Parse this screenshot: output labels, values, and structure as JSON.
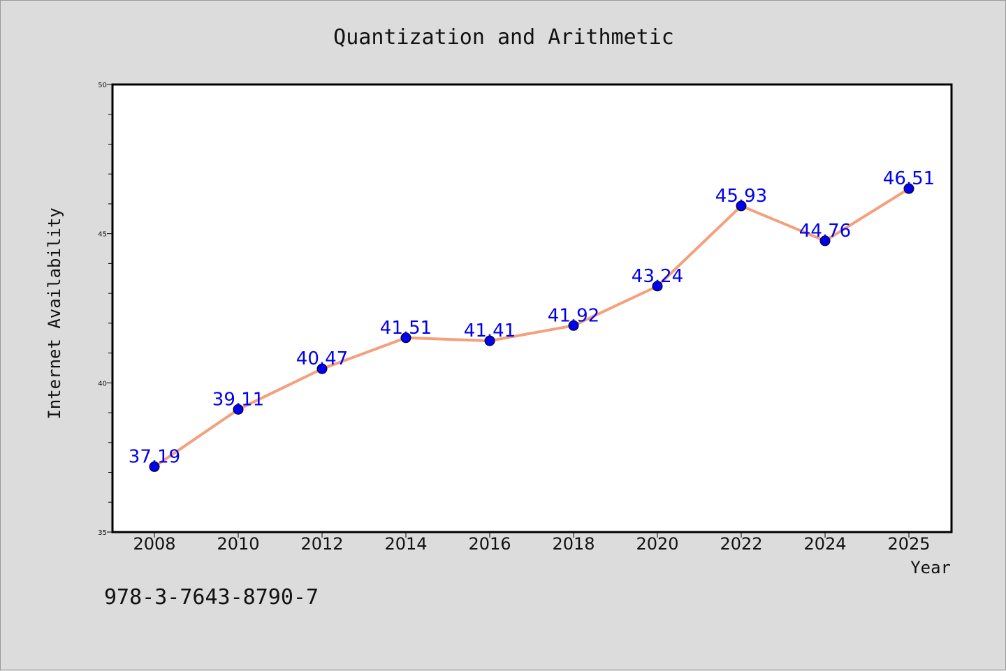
{
  "chart_data": {
    "type": "line",
    "title": "Quantization and Arithmetic",
    "xlabel": "Year",
    "ylabel": "Internet Availability",
    "x": [
      "2008",
      "2010",
      "2012",
      "2014",
      "2016",
      "2018",
      "2020",
      "2022",
      "2024",
      "2025"
    ],
    "series": [
      {
        "values": [
          37.19,
          39.11,
          40.47,
          41.51,
          41.41,
          41.92,
          43.24,
          45.93,
          44.76,
          46.51
        ],
        "line_color": "#f4a07e",
        "marker_color": "#0000ee"
      }
    ],
    "data_labels": [
      "37.19",
      "39.11",
      "40.47",
      "41.51",
      "41.41",
      "41.92",
      "43.24",
      "45.93",
      "44.76",
      "46.51"
    ],
    "ylim": [
      35,
      50
    ],
    "yticks": [
      "35",
      "40",
      "45",
      "50"
    ],
    "grid": false,
    "legend": "none"
  },
  "footer": {
    "isbn": "978-3-7643-8790-7"
  },
  "colors": {
    "background": "#dcdcdc",
    "plot_background": "#ffffff",
    "line": "#f4a07e",
    "marker": "#0000ee",
    "data_label": "#0000ee"
  }
}
